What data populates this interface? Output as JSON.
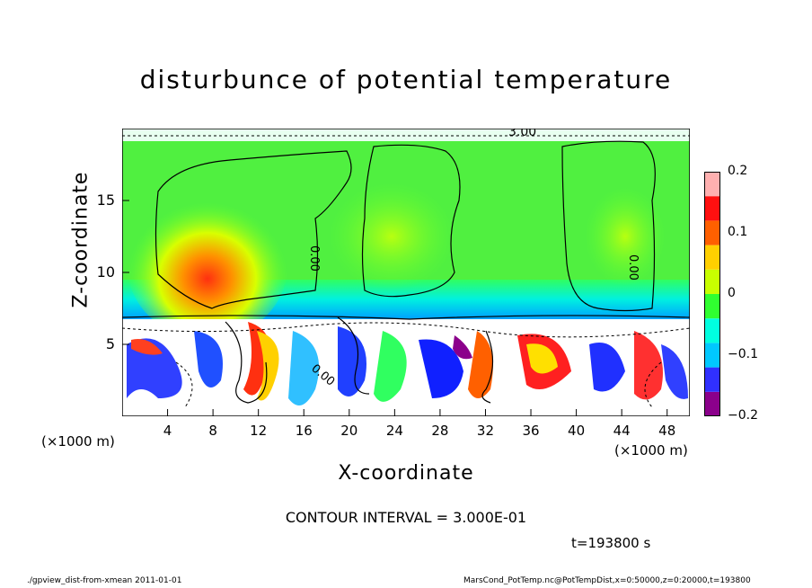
{
  "chart_data": {
    "type": "heatmap",
    "title": "disturbunce of potential temperature",
    "xlabel": "X-coordinate",
    "ylabel": "Z-coordinate",
    "x_unit_left": "(×1000 m)",
    "x_unit_right": "(×1000 m)",
    "xlim": [
      0,
      50
    ],
    "ylim": [
      0,
      20
    ],
    "x_ticks": [
      "4",
      "8",
      "12",
      "16",
      "20",
      "24",
      "28",
      "32",
      "36",
      "40",
      "44",
      "48"
    ],
    "y_ticks": [
      "5",
      "10",
      "15"
    ],
    "colorbar": {
      "range": [
        -0.2,
        0.2
      ],
      "ticks": [
        "0.2",
        "0.1",
        "0",
        "−0.1",
        "−0.2"
      ],
      "colors": [
        "#8b008b",
        "#3030ff",
        "#00c8ff",
        "#00ffe0",
        "#30ff30",
        "#c8ff00",
        "#ffd000",
        "#ff6000",
        "#ff1010",
        "#ffb0b0"
      ]
    },
    "contour_labels": [
      "3.00",
      "0.00",
      "0.00",
      "0.00",
      "0.00"
    ],
    "contour_interval_text": "CONTOUR INTERVAL = 3.000E-01",
    "time_text": "t=193800 s",
    "footer_left": "./gpview_dist-from-xmean  2011-01-01",
    "footer_right": "MarsCond_PotTemp.nc@PotTempDist,x=0:50000,z=0:20000,t=193800"
  }
}
